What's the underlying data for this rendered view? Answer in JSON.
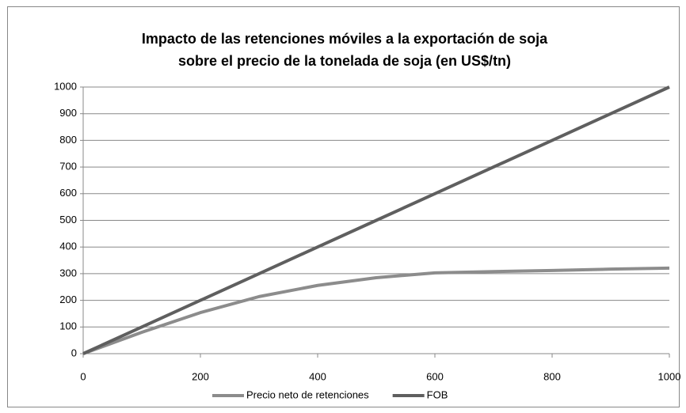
{
  "chart_data": {
    "type": "line",
    "title": [
      "Impacto de las retenciones móviles a la exportación de soja",
      "sobre el precio de la tonelada de soja (en US$/tn)"
    ],
    "series": [
      {
        "name": "Precio neto de retenciones",
        "color": "#8c8c8c",
        "x": [
          0,
          100,
          200,
          300,
          400,
          500,
          600,
          700,
          800,
          900,
          1000
        ],
        "values": [
          0,
          80,
          154,
          214,
          256,
          285,
          303,
          308,
          312,
          317,
          321
        ]
      },
      {
        "name": "FOB",
        "color": "#5f5f5f",
        "x": [
          0,
          100,
          200,
          300,
          400,
          500,
          600,
          700,
          800,
          900,
          1000
        ],
        "values": [
          0,
          100,
          200,
          300,
          400,
          500,
          600,
          700,
          800,
          900,
          1000
        ]
      }
    ],
    "xlim": [
      0,
      1000
    ],
    "xticks": [
      0,
      200,
      400,
      600,
      800,
      1000
    ],
    "ylim": [
      0,
      1000
    ],
    "yticks": [
      0,
      100,
      200,
      300,
      400,
      500,
      600,
      700,
      800,
      900,
      1000
    ],
    "grid": true,
    "legend": "bottom"
  }
}
